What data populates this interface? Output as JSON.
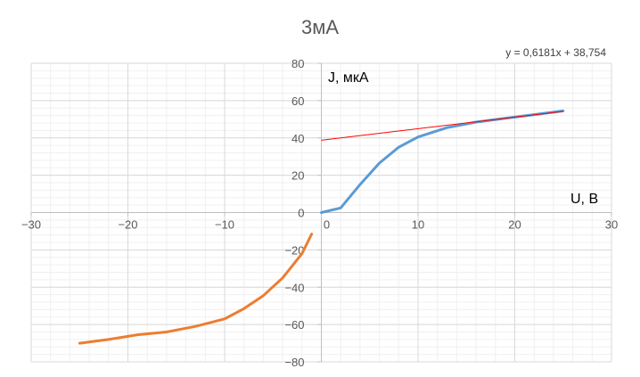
{
  "chart_data": {
    "type": "line",
    "title": "3мА",
    "xlabel": "U, В",
    "ylabel": "J, мкА",
    "xlim": [
      -30,
      30
    ],
    "ylim": [
      -80,
      80
    ],
    "x_ticks": [
      -30,
      -20,
      -10,
      0,
      10,
      20,
      30
    ],
    "y_ticks": [
      -80,
      -60,
      -40,
      -20,
      0,
      20,
      40,
      60,
      80
    ],
    "x_tick_labels": [
      "−30",
      "−20",
      "−10",
      "0",
      "10",
      "20",
      "30"
    ],
    "y_tick_labels": [
      "−80",
      "−60",
      "−40",
      "−20",
      "0",
      "20",
      "40",
      "60",
      "80"
    ],
    "grid": true,
    "trendline_label": "y = 0,6181x + 38,754",
    "trendline": {
      "slope": 0.6181,
      "intercept": 38.754,
      "x_range": [
        0,
        25
      ],
      "color": "#ff0000"
    },
    "series": [
      {
        "color": "#5b9bd5",
        "points": [
          [
            0,
            0
          ],
          [
            2,
            2.5
          ],
          [
            4,
            15
          ],
          [
            6,
            26.5
          ],
          [
            8,
            35
          ],
          [
            10,
            40.5
          ],
          [
            13,
            45.5
          ],
          [
            16,
            48.5
          ],
          [
            19,
            50.5
          ],
          [
            22,
            52.5
          ],
          [
            25,
            54.5
          ]
        ]
      },
      {
        "color": "#ed7d31",
        "points": [
          [
            -25,
            -70
          ],
          [
            -22,
            -68
          ],
          [
            -19,
            -65.5
          ],
          [
            -16,
            -64
          ],
          [
            -13,
            -61
          ],
          [
            -10,
            -57
          ],
          [
            -8,
            -51.5
          ],
          [
            -6,
            -44.5
          ],
          [
            -4,
            -35
          ],
          [
            -2,
            -22
          ],
          [
            -1,
            -11.5
          ]
        ]
      }
    ]
  }
}
